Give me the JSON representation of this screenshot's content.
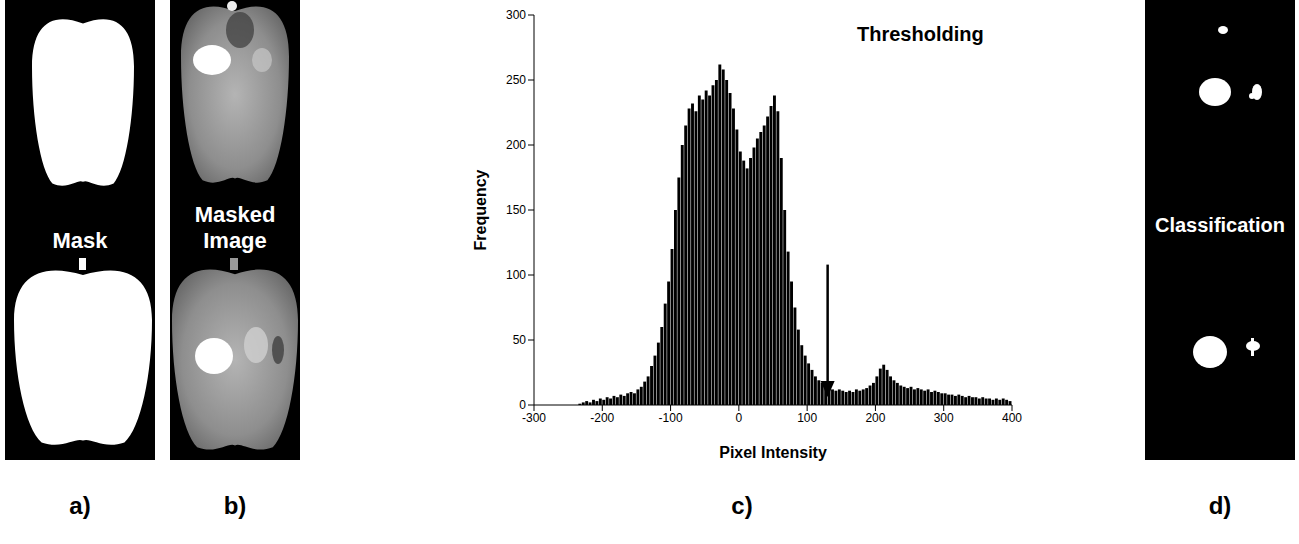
{
  "panels": [
    {
      "letter": "a)",
      "caption": "Mask"
    },
    {
      "letter": "b)",
      "caption": "Masked Image"
    },
    {
      "letter": "c)"
    },
    {
      "letter": "d)",
      "caption": "Classification"
    }
  ],
  "chart_data": {
    "type": "histogram",
    "title": "Thresholding",
    "xlabel": "Pixel Intensity",
    "ylabel": "Frequency",
    "bins": [
      -300,
      -295,
      -290,
      -285,
      -280,
      -275,
      -270,
      -265,
      -260,
      -255,
      -250,
      -245,
      -240,
      -235,
      -230,
      -225,
      -220,
      -215,
      -210,
      -205,
      -200,
      -195,
      -190,
      -185,
      -180,
      -175,
      -170,
      -165,
      -160,
      -155,
      -150,
      -145,
      -140,
      -135,
      -130,
      -125,
      -120,
      -115,
      -110,
      -105,
      -100,
      -95,
      -90,
      -85,
      -80,
      -75,
      -70,
      -65,
      -60,
      -55,
      -50,
      -45,
      -40,
      -35,
      -30,
      -25,
      -20,
      -15,
      -10,
      -5,
      0,
      5,
      10,
      15,
      20,
      25,
      30,
      35,
      40,
      45,
      50,
      55,
      60,
      65,
      70,
      75,
      80,
      85,
      90,
      95,
      100,
      105,
      110,
      115,
      120,
      125,
      130,
      135,
      140,
      145,
      150,
      155,
      160,
      165,
      170,
      175,
      180,
      185,
      190,
      195,
      200,
      205,
      210,
      215,
      220,
      225,
      230,
      235,
      240,
      245,
      250,
      255,
      260,
      265,
      270,
      275,
      280,
      285,
      290,
      295,
      300,
      305,
      310,
      315,
      320,
      325,
      330,
      335,
      340,
      345,
      350,
      355,
      360,
      365,
      370,
      375,
      380,
      385,
      390,
      395,
      400
    ],
    "counts": [
      0,
      0,
      0,
      0,
      0,
      0,
      0,
      0,
      0,
      0,
      0,
      0,
      0,
      1,
      2,
      3,
      2,
      4,
      3,
      5,
      4,
      6,
      5,
      7,
      6,
      8,
      7,
      9,
      10,
      9,
      12,
      14,
      18,
      22,
      30,
      38,
      48,
      60,
      78,
      95,
      120,
      150,
      175,
      200,
      215,
      228,
      232,
      226,
      238,
      235,
      242,
      238,
      246,
      250,
      262,
      258,
      250,
      240,
      228,
      212,
      195,
      188,
      182,
      190,
      198,
      205,
      210,
      215,
      222,
      230,
      238,
      226,
      190,
      150,
      118,
      95,
      75,
      58,
      46,
      38,
      32,
      27,
      22,
      19,
      17,
      14,
      13,
      12,
      11,
      12,
      11,
      10,
      11,
      10,
      12,
      11,
      12,
      13,
      15,
      17,
      22,
      28,
      31,
      27,
      22,
      19,
      17,
      15,
      14,
      13,
      14,
      12,
      13,
      12,
      11,
      12,
      10,
      11,
      10,
      9,
      9,
      8,
      8,
      7,
      8,
      7,
      6,
      7,
      6,
      6,
      5,
      6,
      5,
      5,
      4,
      5,
      4,
      5,
      4,
      3
    ],
    "color": "#000000",
    "xlim": [
      -300,
      400
    ],
    "xticks": [
      -300,
      -200,
      -100,
      0,
      100,
      200,
      300,
      400
    ],
    "ylim": [
      0,
      300
    ],
    "yticks": [
      0,
      50,
      100,
      150,
      200,
      250,
      300
    ],
    "threshold": 130
  }
}
